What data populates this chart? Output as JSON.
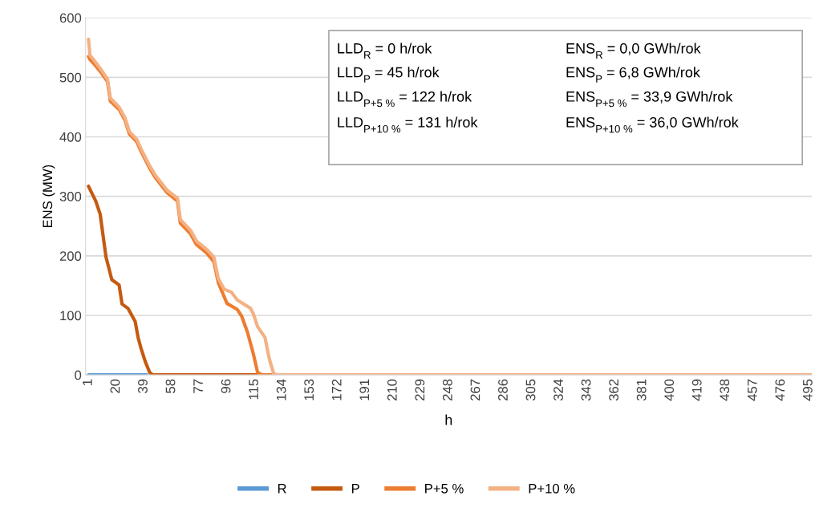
{
  "chart_data": {
    "type": "line",
    "xlabel": "h",
    "ylabel": "ENS (MW)",
    "xlim": [
      -1,
      497
    ],
    "xticks": [
      1,
      20,
      39,
      58,
      77,
      96,
      115,
      134,
      153,
      172,
      191,
      210,
      229,
      248,
      267,
      286,
      305,
      324,
      343,
      362,
      381,
      400,
      419,
      438,
      457,
      476,
      495
    ],
    "ylim": [
      0,
      600
    ],
    "yticks": [
      0,
      100,
      200,
      300,
      400,
      500,
      600
    ],
    "grid": "y",
    "legend": "bottom",
    "marker": "none",
    "line_style": "solid",
    "series": [
      {
        "name": "R",
        "color": "#5b9bd5",
        "x": [
          1,
          41
        ],
        "values": [
          0,
          0
        ]
      },
      {
        "name": "P",
        "color": "#c55a11",
        "x": [
          1,
          6,
          9,
          13,
          17,
          22,
          24,
          28,
          33,
          35,
          37,
          40,
          43,
          45,
          117
        ],
        "values": [
          317,
          292,
          270,
          198,
          160,
          151,
          119,
          112,
          90,
          63,
          45,
          22,
          4,
          0,
          0
        ]
      },
      {
        "name": "P+5 %",
        "color": "#ed7d31",
        "x": [
          1,
          2,
          5,
          9,
          14,
          16,
          22,
          26,
          29,
          34,
          37,
          43,
          47,
          55,
          62,
          64,
          71,
          75,
          82,
          87,
          90,
          96,
          103,
          106,
          110,
          114,
          117,
          120,
          128
        ],
        "values": [
          535,
          530,
          522,
          510,
          493,
          460,
          446,
          428,
          405,
          392,
          376,
          347,
          331,
          306,
          292,
          255,
          237,
          219,
          205,
          190,
          155,
          120,
          110,
          99,
          72,
          36,
          4,
          0,
          0
        ]
      },
      {
        "name": "P+10 %",
        "color": "#f4b183",
        "x": [
          1,
          2,
          5,
          9,
          14,
          16,
          22,
          26,
          29,
          34,
          37,
          43,
          47,
          55,
          62,
          64,
          71,
          75,
          82,
          87,
          90,
          94,
          99,
          103,
          112,
          114,
          117,
          122,
          125,
          128,
          131,
          497
        ],
        "values": [
          564,
          537,
          528,
          515,
          497,
          465,
          450,
          432,
          409,
          396,
          380,
          351,
          335,
          310,
          297,
          261,
          243,
          225,
          211,
          198,
          162,
          144,
          139,
          126,
          112,
          103,
          81,
          63,
          27,
          2,
          0,
          0
        ]
      }
    ],
    "annotations": [
      "LLD$_{R}$ = 0 h/rok",
      "LLD$_{P}$ = 45 h/rok",
      "LLD$_{P+5 %}$ = 122 h/rok",
      "LLD$_{P+10 %}$ = 131 h/rok",
      "ENS$_{R}$ = 0,0 GWh/rok",
      "ENS$_{P}$ = 6,8 GWh/rok",
      "ENS$_{P+5 %}$ = 33,9 GWh/rok",
      "ENS$_{P+10 %}$ = 36,0 GWh/rok"
    ]
  }
}
